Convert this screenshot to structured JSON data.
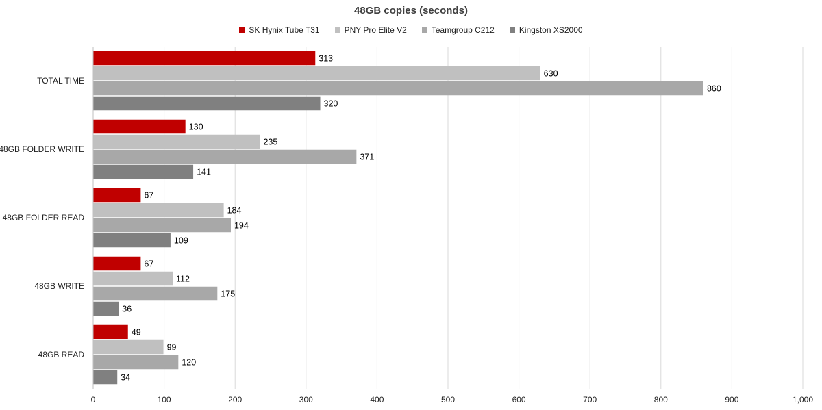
{
  "chart_data": {
    "type": "bar",
    "orientation": "horizontal",
    "title": "48GB copies (seconds)",
    "xlabel": "",
    "ylabel": "",
    "xlim": [
      0,
      1000
    ],
    "x_ticks": [
      "0",
      "100",
      "200",
      "300",
      "400",
      "500",
      "600",
      "700",
      "800",
      "900",
      "1,000"
    ],
    "grid": true,
    "legend_position": "top",
    "categories": [
      "TOTAL TIME",
      "48GB FOLDER WRITE",
      "48GB FOLDER READ",
      "48GB WRITE",
      "48GB READ"
    ],
    "series": [
      {
        "name": "SK Hynix Tube T31",
        "color": "#c00000",
        "values": [
          313,
          130,
          67,
          67,
          49
        ]
      },
      {
        "name": "PNY Pro Elite V2",
        "color": "#c0c0c0",
        "values": [
          630,
          235,
          184,
          112,
          99
        ]
      },
      {
        "name": "Teamgroup C212",
        "color": "#a8a8a8",
        "values": [
          860,
          371,
          194,
          175,
          120
        ]
      },
      {
        "name": "Kingston XS2000",
        "color": "#808080",
        "values": [
          320,
          141,
          109,
          36,
          34
        ]
      }
    ]
  }
}
